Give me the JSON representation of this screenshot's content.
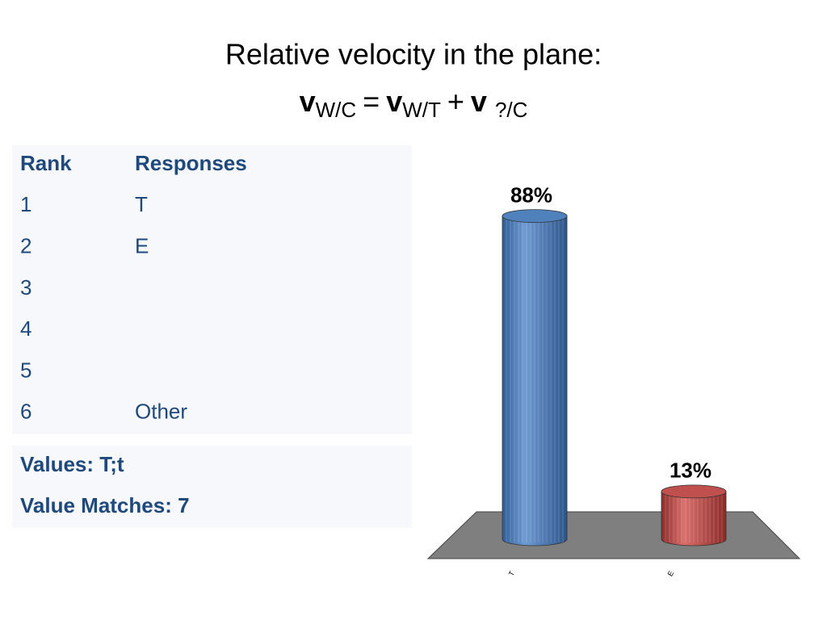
{
  "slide": {
    "title": "Relative velocity in the plane:",
    "formula": {
      "terms": [
        {
          "symbol": "v",
          "subscript": "W/C"
        },
        {
          "symbol": "v",
          "subscript": "W/T"
        },
        {
          "symbol": "v",
          "subscript": "?/C"
        }
      ],
      "operators": [
        "=",
        "+"
      ]
    }
  },
  "table": {
    "header": [
      "Rank",
      "Responses"
    ],
    "rows": [
      {
        "rank": "1",
        "response": "T"
      },
      {
        "rank": "2",
        "response": "E"
      },
      {
        "rank": "3"
      },
      {
        "rank": "4"
      },
      {
        "rank": "5"
      },
      {
        "rank": "6",
        "response": "Other"
      }
    ],
    "footer": [
      "Values: T;t",
      "Value Matches: 7"
    ]
  },
  "chart_data": {
    "type": "bar",
    "categories": [
      "T",
      "E"
    ],
    "values": [
      88,
      13
    ],
    "value_labels": [
      "88%",
      "13%"
    ],
    "colors": [
      "#4f81bd",
      "#c0504d"
    ]
  }
}
